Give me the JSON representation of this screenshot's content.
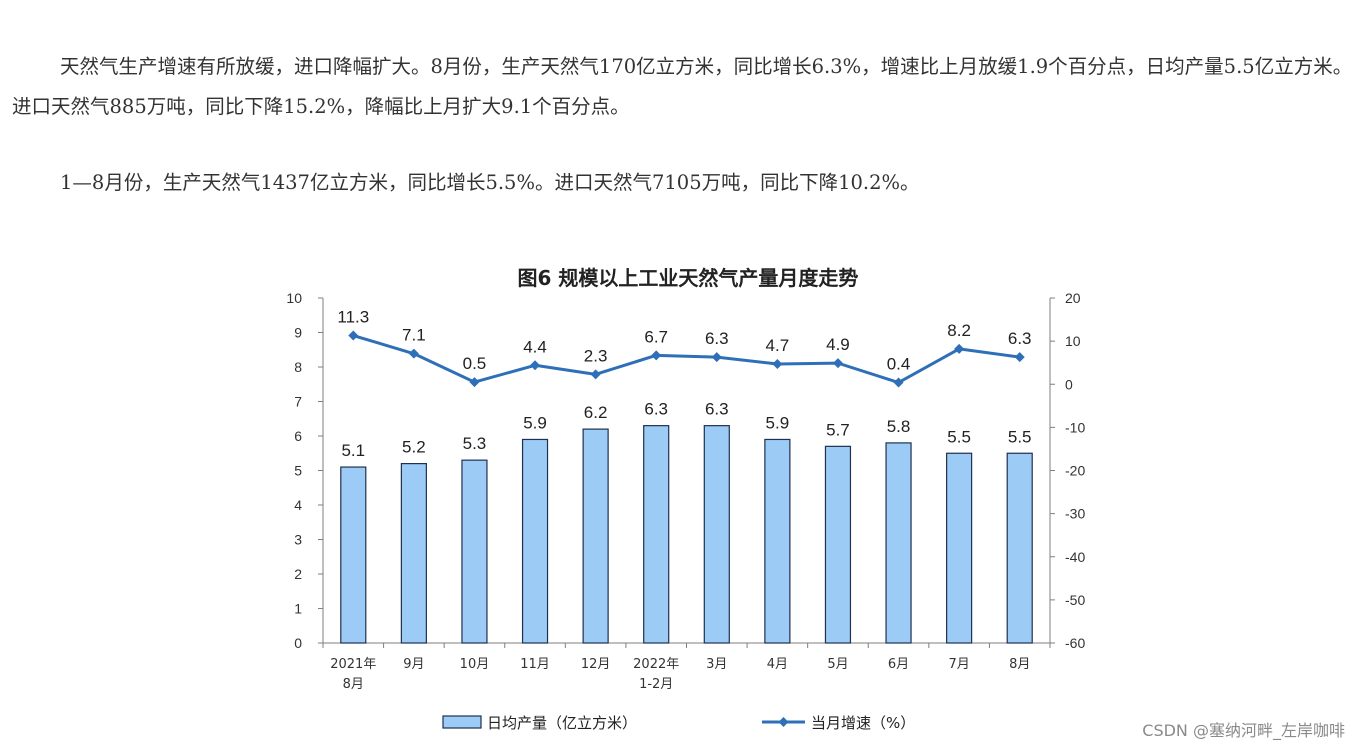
{
  "article": {
    "paragraph_1": "天然气生产增速有所放缓，进口降幅扩大。8月份，生产天然气170亿立方米，同比增长6.3%，增速比上月放缓1.9个百分点，日均产量5.5亿立方米。进口天然气885万吨，同比下降15.2%，降幅比上月扩大9.1个百分点。",
    "paragraph_2": "1—8月份，生产天然气1437亿立方米，同比增长5.5%。进口天然气7105万吨，同比下降10.2%。"
  },
  "watermark": "CSDN @塞纳河畔_左岸咖啡",
  "chart_data": {
    "type": "bar",
    "title": "图6  规模以上工业天然气产量月度走势",
    "categories": [
      "2021年\n8月",
      "9月",
      "10月",
      "11月",
      "12月",
      "2022年\n1-2月",
      "3月",
      "4月",
      "5月",
      "6月",
      "7月",
      "8月"
    ],
    "series": [
      {
        "name": "日均产量（亿立方米）",
        "type": "bar",
        "axis": "left",
        "values": [
          5.1,
          5.2,
          5.3,
          5.9,
          6.2,
          6.3,
          6.3,
          5.9,
          5.7,
          5.8,
          5.5,
          5.5
        ],
        "color": "#9ccbf5",
        "border_color": "#1f3050"
      },
      {
        "name": "当月增速（%）",
        "type": "line",
        "axis": "right",
        "values": [
          11.3,
          7.1,
          0.5,
          4.4,
          2.3,
          6.7,
          6.3,
          4.7,
          4.9,
          0.4,
          8.2,
          6.3
        ],
        "color": "#2e6fb8"
      }
    ],
    "y_left": {
      "range": [
        0,
        10
      ],
      "ticks": [
        0,
        1,
        2,
        3,
        4,
        5,
        6,
        7,
        8,
        9,
        10
      ]
    },
    "y_right": {
      "range": [
        -60,
        20
      ],
      "ticks": [
        -60,
        -50,
        -40,
        -30,
        -20,
        -10,
        0,
        10,
        20
      ]
    },
    "grid": false,
    "legend_position": "bottom",
    "data_labels": true
  }
}
